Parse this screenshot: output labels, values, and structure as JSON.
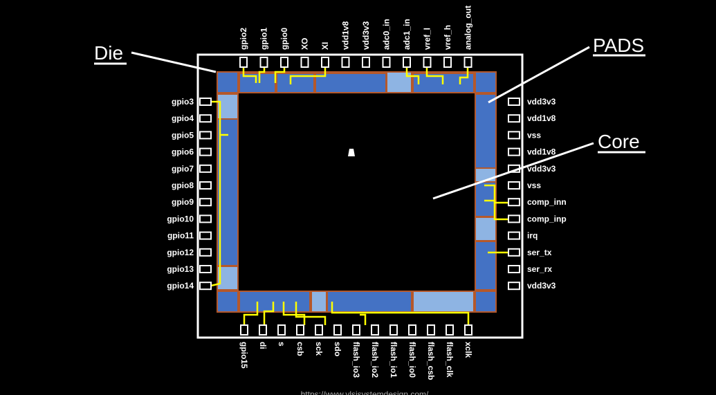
{
  "annotations": {
    "die": "Die",
    "pads": "PADS",
    "core": "Core"
  },
  "pins": {
    "top": [
      "gpio2",
      "gpio1",
      "gpio0",
      "XO",
      "XI",
      "vdd1v8",
      "vdd3v3",
      "adc0_in",
      "adc1_in",
      "vref_l",
      "vref_h",
      "analog_out"
    ],
    "left": [
      "gpio3",
      "gpio4",
      "gpio5",
      "gpio6",
      "gpio7",
      "gpio8",
      "gpio9",
      "gpio10",
      "gpio11",
      "gpio12",
      "gpio13",
      "gpio14"
    ],
    "right": [
      "vdd3v3",
      "vdd1v8",
      "vss",
      "vdd1v8",
      "vdd3v3",
      "vss",
      "comp_inn",
      "comp_inp",
      "irq",
      "ser_tx",
      "ser_rx",
      "vdd3v3"
    ],
    "bottom": [
      "gpio15",
      "di",
      "s",
      "csb",
      "sck",
      "sdo",
      "flash_io3",
      "flash_io2",
      "flash_io1",
      "flash_io0",
      "flash_csb",
      "flash_clk",
      "xclk"
    ]
  },
  "footer_url": "https://www.vlsisystemdesign.com/"
}
